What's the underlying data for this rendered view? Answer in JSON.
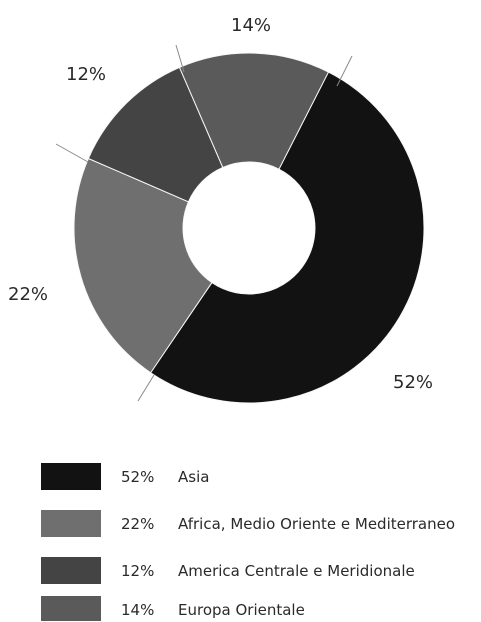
{
  "chart_data": {
    "type": "pie",
    "donut": true,
    "categories": [
      "Asia",
      "Africa, Medio Oriente e Mediterraneo",
      "America Centrale e Meridionale",
      "Europa Orientale"
    ],
    "values": [
      52,
      22,
      12,
      14
    ],
    "labels": [
      "52%",
      "22%",
      "12%",
      "14%"
    ],
    "colors": [
      "#121212",
      "#6f6f6f",
      "#444444",
      "#5a5a5a"
    ],
    "legend": {
      "position": "bottom",
      "items": [
        {
          "percent": "52%",
          "label": "Asia",
          "color": "#121212"
        },
        {
          "percent": "22%",
          "label": "Africa, Medio Oriente e Mediterraneo",
          "color": "#6f6f6f"
        },
        {
          "percent": "12%",
          "label": "America Centrale e Meridionale",
          "color": "#444444"
        },
        {
          "percent": "14%",
          "label": "Europa Orientale",
          "color": "#5a5a5a"
        }
      ]
    }
  }
}
